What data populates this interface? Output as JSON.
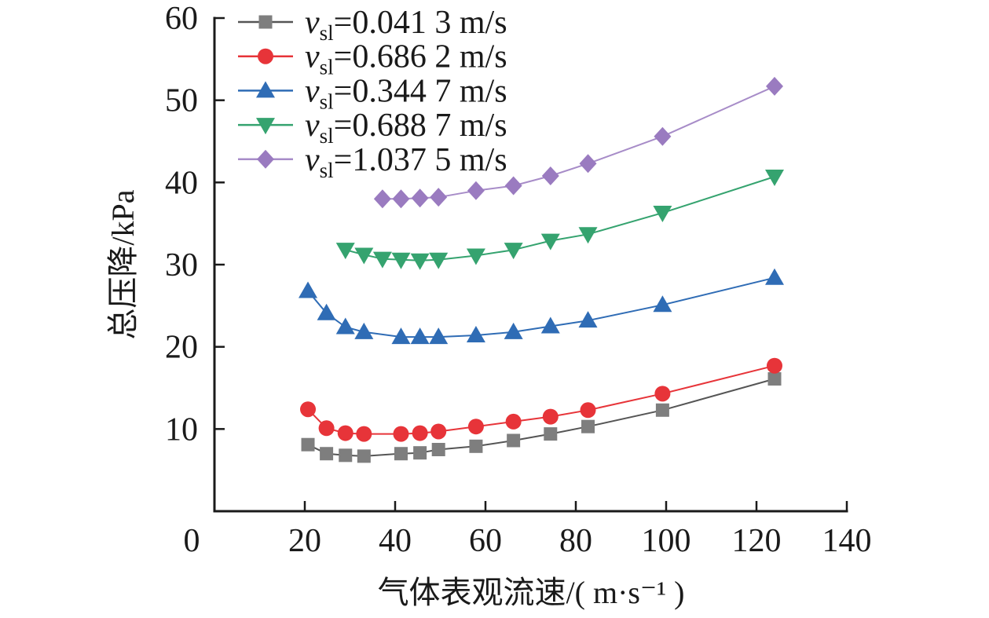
{
  "figure": {
    "background": "#ffffff",
    "text_color": "#1a1a1a",
    "axis_color": "#1a1a1a"
  },
  "chart_data": {
    "type": "line",
    "title": "",
    "xlabel": "气体表观流速/( m·s⁻¹ )",
    "ylabel": "总压降/kPa",
    "xlim": [
      0,
      140
    ],
    "ylim": [
      0,
      60
    ],
    "xticks": [
      0,
      20,
      40,
      60,
      80,
      100,
      120,
      140
    ],
    "yticks": [
      10,
      20,
      30,
      40,
      50,
      60
    ],
    "grid": false,
    "legend_position": "top-left",
    "legend_symbol": "v",
    "legend_subscript": "sl",
    "series": [
      {
        "name": "v_sl=0.041 3 m/s",
        "value": "0.041 3",
        "unit": "m/s",
        "marker": "square",
        "color": "#7e7e7e",
        "line_color": "#555555",
        "points": [
          [
            20.7,
            8.1
          ],
          [
            24.8,
            7.0
          ],
          [
            29.0,
            6.8
          ],
          [
            33.1,
            6.7
          ],
          [
            41.3,
            7.0
          ],
          [
            45.5,
            7.1
          ],
          [
            49.6,
            7.5
          ],
          [
            57.9,
            7.9
          ],
          [
            66.2,
            8.6
          ],
          [
            74.4,
            9.4
          ],
          [
            82.7,
            10.3
          ],
          [
            99.2,
            12.3
          ],
          [
            124.0,
            16.1
          ]
        ]
      },
      {
        "name": "v_sl=0.686 2 m/s",
        "value": "0.686 2",
        "unit": "m/s",
        "marker": "circle",
        "color": "#e73439",
        "line_color": "#e73439",
        "points": [
          [
            20.7,
            12.4
          ],
          [
            24.8,
            10.1
          ],
          [
            29.0,
            9.5
          ],
          [
            33.1,
            9.4
          ],
          [
            41.3,
            9.4
          ],
          [
            45.5,
            9.5
          ],
          [
            49.6,
            9.7
          ],
          [
            57.9,
            10.3
          ],
          [
            66.2,
            10.9
          ],
          [
            74.4,
            11.5
          ],
          [
            82.7,
            12.3
          ],
          [
            99.2,
            14.3
          ],
          [
            124.0,
            17.7
          ]
        ]
      },
      {
        "name": "v_sl=0.344 7 m/s",
        "value": "0.344 7",
        "unit": "m/s",
        "marker": "triangle-up",
        "color": "#2f6cb5",
        "line_color": "#2f6cb5",
        "points": [
          [
            20.7,
            26.8
          ],
          [
            24.8,
            24.1
          ],
          [
            29.0,
            22.4
          ],
          [
            33.1,
            21.8
          ],
          [
            41.3,
            21.2
          ],
          [
            45.5,
            21.2
          ],
          [
            49.6,
            21.2
          ],
          [
            57.9,
            21.4
          ],
          [
            66.2,
            21.8
          ],
          [
            74.4,
            22.5
          ],
          [
            82.7,
            23.2
          ],
          [
            99.2,
            25.1
          ],
          [
            124.0,
            28.4
          ]
        ]
      },
      {
        "name": "v_sl=0.688 7 m/s",
        "value": "0.688 7",
        "unit": "m/s",
        "marker": "triangle-down",
        "color": "#35a36f",
        "line_color": "#35a36f",
        "points": [
          [
            29.0,
            31.8
          ],
          [
            33.1,
            31.2
          ],
          [
            37.2,
            30.7
          ],
          [
            41.3,
            30.6
          ],
          [
            45.5,
            30.5
          ],
          [
            49.6,
            30.6
          ],
          [
            57.9,
            31.1
          ],
          [
            66.2,
            31.8
          ],
          [
            74.4,
            32.9
          ],
          [
            82.7,
            33.7
          ],
          [
            99.2,
            36.3
          ],
          [
            124.0,
            40.7
          ]
        ]
      },
      {
        "name": "v_sl=1.037 5 m/s",
        "value": "1.037 5",
        "unit": "m/s",
        "marker": "diamond",
        "color": "#9a7bc0",
        "line_color": "#a78cc8",
        "points": [
          [
            37.2,
            38.0
          ],
          [
            41.3,
            38.0
          ],
          [
            45.5,
            38.1
          ],
          [
            49.6,
            38.2
          ],
          [
            57.9,
            39.0
          ],
          [
            66.2,
            39.6
          ],
          [
            74.4,
            40.8
          ],
          [
            82.7,
            42.3
          ],
          [
            99.2,
            45.6
          ],
          [
            124.0,
            51.7
          ]
        ]
      }
    ]
  }
}
